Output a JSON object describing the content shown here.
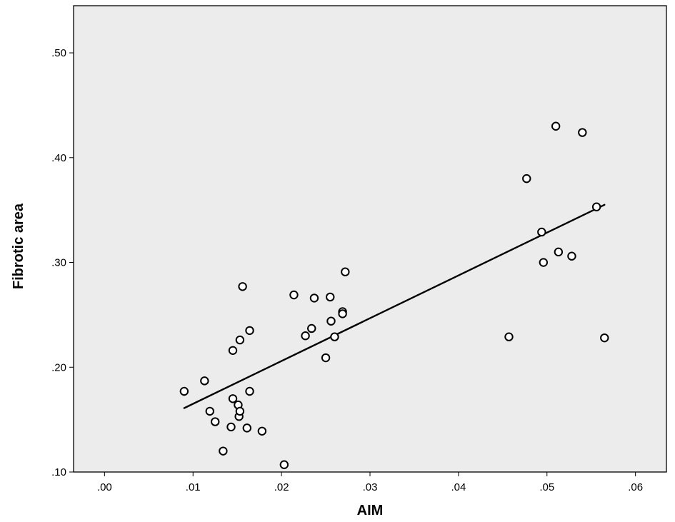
{
  "chart_data": {
    "type": "scatter",
    "title": "",
    "xlabel": "AIM",
    "ylabel": "Fibrotic area",
    "xlim": [
      -0.0035,
      0.0635
    ],
    "ylim": [
      0.1,
      0.545
    ],
    "xticks": [
      0.0,
      0.01,
      0.02,
      0.03,
      0.04,
      0.05,
      0.06
    ],
    "xtick_labels": [
      ".00",
      ".01",
      ".02",
      ".03",
      ".04",
      ".05",
      ".06"
    ],
    "yticks": [
      0.1,
      0.2,
      0.3,
      0.4,
      0.5
    ],
    "ytick_labels": [
      ".10",
      ".20",
      ".30",
      ".40",
      ".50"
    ],
    "grid": false,
    "legend": "none",
    "colors": {
      "plot_background": "#ececec",
      "marker_edge": "#000000",
      "marker_fill": "#ffffff",
      "fit_line": "#000000",
      "frame": "#000000"
    },
    "fit_line": {
      "x": [
        0.009,
        0.0565
      ],
      "y": [
        0.161,
        0.355
      ]
    },
    "points": [
      {
        "x": 0.009,
        "y": 0.177
      },
      {
        "x": 0.0113,
        "y": 0.187
      },
      {
        "x": 0.0119,
        "y": 0.158
      },
      {
        "x": 0.0125,
        "y": 0.148
      },
      {
        "x": 0.0134,
        "y": 0.12
      },
      {
        "x": 0.0143,
        "y": 0.143
      },
      {
        "x": 0.0145,
        "y": 0.216
      },
      {
        "x": 0.0145,
        "y": 0.17
      },
      {
        "x": 0.0151,
        "y": 0.164
      },
      {
        "x": 0.0152,
        "y": 0.153
      },
      {
        "x": 0.0153,
        "y": 0.158
      },
      {
        "x": 0.0153,
        "y": 0.226
      },
      {
        "x": 0.0156,
        "y": 0.277
      },
      {
        "x": 0.0161,
        "y": 0.142
      },
      {
        "x": 0.0164,
        "y": 0.235
      },
      {
        "x": 0.0164,
        "y": 0.177
      },
      {
        "x": 0.0178,
        "y": 0.139
      },
      {
        "x": 0.0203,
        "y": 0.107
      },
      {
        "x": 0.0214,
        "y": 0.269
      },
      {
        "x": 0.0227,
        "y": 0.23
      },
      {
        "x": 0.0234,
        "y": 0.237
      },
      {
        "x": 0.0237,
        "y": 0.266
      },
      {
        "x": 0.025,
        "y": 0.209
      },
      {
        "x": 0.0255,
        "y": 0.267
      },
      {
        "x": 0.0256,
        "y": 0.244
      },
      {
        "x": 0.026,
        "y": 0.229
      },
      {
        "x": 0.0269,
        "y": 0.253
      },
      {
        "x": 0.0269,
        "y": 0.251
      },
      {
        "x": 0.0272,
        "y": 0.291
      },
      {
        "x": 0.0457,
        "y": 0.229
      },
      {
        "x": 0.0477,
        "y": 0.38
      },
      {
        "x": 0.0494,
        "y": 0.329
      },
      {
        "x": 0.0496,
        "y": 0.3
      },
      {
        "x": 0.051,
        "y": 0.43
      },
      {
        "x": 0.0513,
        "y": 0.31
      },
      {
        "x": 0.0528,
        "y": 0.306
      },
      {
        "x": 0.054,
        "y": 0.424
      },
      {
        "x": 0.0556,
        "y": 0.353
      },
      {
        "x": 0.0565,
        "y": 0.228
      }
    ]
  }
}
